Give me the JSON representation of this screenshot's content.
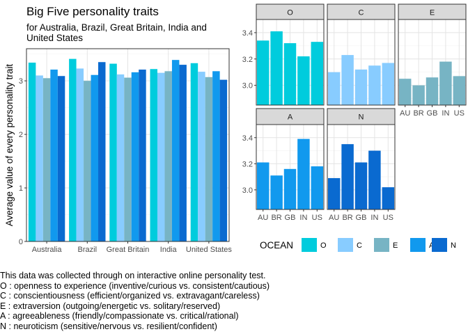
{
  "colors": {
    "O": "#00CCDD",
    "C": "#88CCFF",
    "E": "#77B4C4",
    "A": "#1199EE",
    "N": "#0A6AD0"
  },
  "caption_lines": [
    "This data was collected through on interactive online personality test.",
    "O : openness to experience (inventive/curious vs. consistent/cautious)",
    "C : conscientiousness (efficient/organized vs. extravagant/careless)",
    "E : extraversion (outgoing/energetic vs. solitary/reserved)",
    "A : agreeableness (friendly/compassionate vs. critical/rational)",
    "N : neuroticism (sensitive/nervous vs. resilient/confident)"
  ],
  "chart_data": [
    {
      "type": "bar",
      "title": "Big Five personality traits",
      "subtitle": "for Australia, Brazil, Great Britain, India and United States",
      "xlabel": "",
      "ylabel": "Average value of every personality trait",
      "categories": [
        "Australia",
        "Brazil",
        "Great Britain",
        "India",
        "United States"
      ],
      "ylim": [
        0,
        3.6
      ],
      "yticks": [
        0,
        1,
        2,
        3
      ],
      "grid": true,
      "legend_title": "OCEAN",
      "legend_position": "bottom-right",
      "series": [
        {
          "name": "O",
          "values": [
            3.34,
            3.41,
            3.32,
            3.22,
            3.33
          ]
        },
        {
          "name": "C",
          "values": [
            3.1,
            3.23,
            3.12,
            3.15,
            3.17
          ]
        },
        {
          "name": "E",
          "values": [
            3.05,
            3.0,
            3.06,
            3.18,
            3.07
          ]
        },
        {
          "name": "A",
          "values": [
            3.21,
            3.11,
            3.16,
            3.39,
            3.18
          ]
        },
        {
          "name": "N",
          "values": [
            3.09,
            3.35,
            3.21,
            3.3,
            3.02
          ]
        }
      ]
    },
    {
      "type": "bar",
      "facets": [
        "O",
        "C",
        "E",
        "A",
        "N"
      ],
      "categories": [
        "AU",
        "BR",
        "GB",
        "IN",
        "US"
      ],
      "ylim": [
        2.85,
        3.5
      ],
      "yticks": [
        3.0,
        3.2,
        3.4
      ],
      "grid": true
    }
  ]
}
